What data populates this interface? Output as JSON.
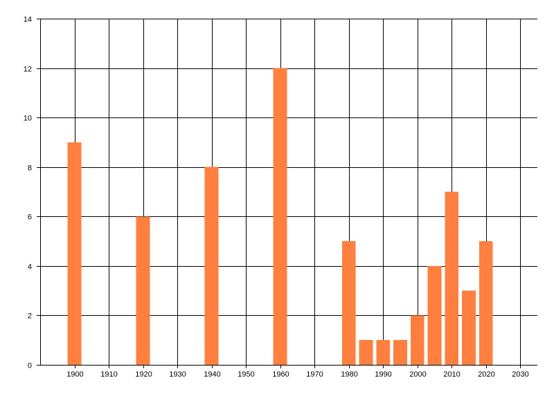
{
  "chart_data": {
    "type": "bar",
    "title": "",
    "xlabel": "",
    "ylabel": "",
    "bar_color": "#ff7f3f",
    "grid": true,
    "legend": "none",
    "xlim": [
      1890,
      2035
    ],
    "ylim": [
      0,
      14
    ],
    "x_ticks": [
      1900,
      1910,
      1920,
      1930,
      1940,
      1950,
      1960,
      1970,
      1980,
      1990,
      2000,
      2010,
      2020,
      2030
    ],
    "y_ticks": [
      0,
      2,
      4,
      6,
      8,
      10,
      12,
      14
    ],
    "x_tick_labels": [
      "1900",
      "1910",
      "1920",
      "1930",
      "1940",
      "1950",
      "1960",
      "1970",
      "1980",
      "1990",
      "2000",
      "2010",
      "2020",
      "2030"
    ],
    "y_tick_labels": [
      "0",
      "2",
      "4",
      "6",
      "8",
      "10",
      "12",
      "14"
    ],
    "bar_width": 4,
    "x": [
      1900,
      1920,
      1940,
      1960,
      1980,
      1985,
      1990,
      1995,
      2000,
      2005,
      2010,
      2015,
      2020
    ],
    "values": [
      9,
      6,
      8,
      12,
      5,
      1,
      1,
      1,
      2,
      4,
      7,
      3,
      5
    ]
  }
}
